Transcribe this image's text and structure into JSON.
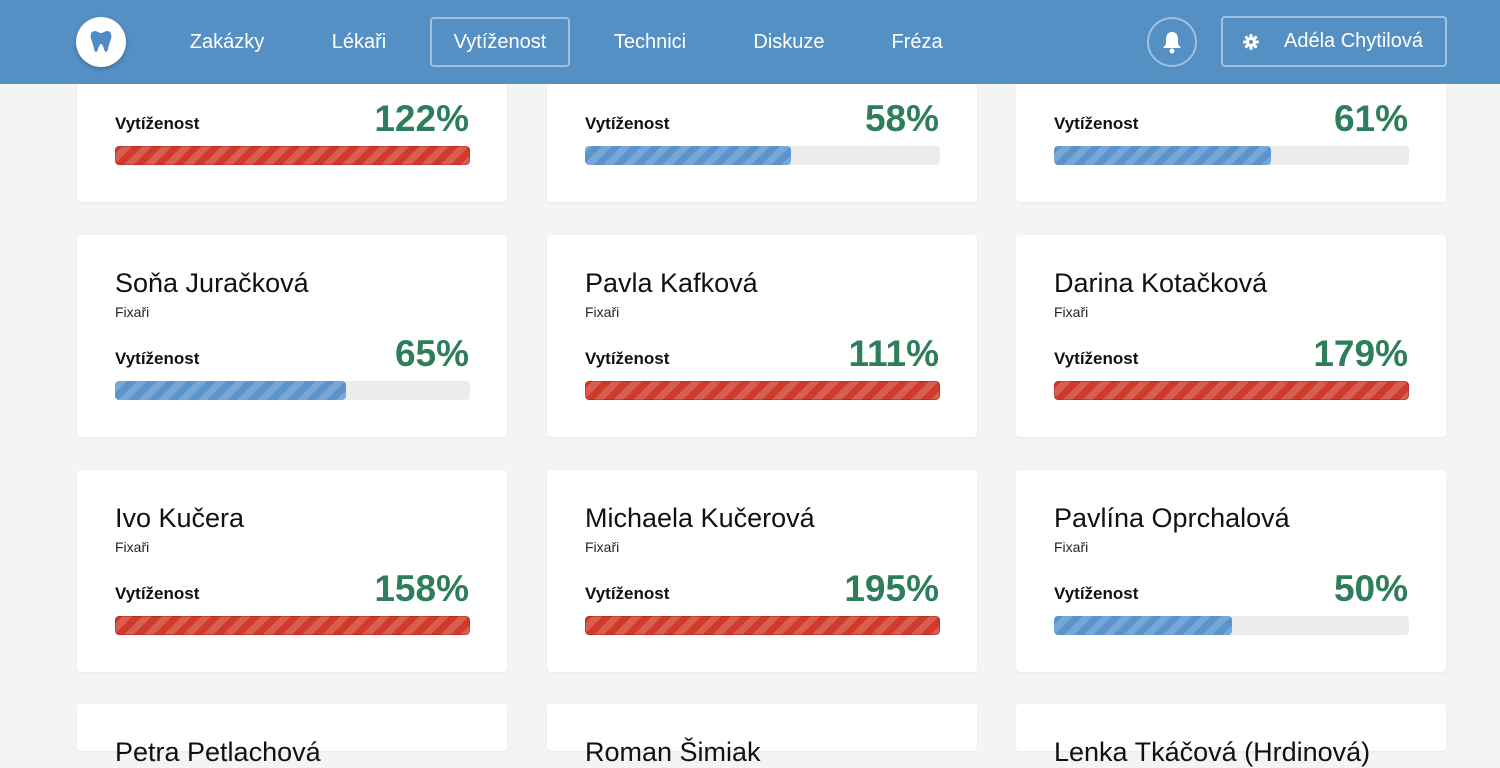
{
  "header": {
    "logo_icon": "tooth-icon",
    "nav": [
      {
        "label": "Zakázky",
        "active": false
      },
      {
        "label": "Lékaři",
        "active": false
      },
      {
        "label": "Vytíženost",
        "active": true
      },
      {
        "label": "Technici",
        "active": false
      },
      {
        "label": "Diskuze",
        "active": false
      },
      {
        "label": "Fréza",
        "active": false
      }
    ],
    "notifications_icon": "bell-icon",
    "user": {
      "icon": "gear-icon",
      "name": "Adéla Chytilová"
    }
  },
  "colors": {
    "header": "#5590c4",
    "percent_text": "#2e7d5b",
    "bar_normal": "#5b94cd",
    "bar_overload": "#cf3a2b",
    "page_bg": "#f3f4f4"
  },
  "cards": [
    {
      "name": "",
      "role": "",
      "label": "Vytíženost",
      "percent": "122%",
      "load": 1.22
    },
    {
      "name": "",
      "role": "",
      "label": "Vytíženost",
      "percent": "58%",
      "load": 0.58
    },
    {
      "name": "",
      "role": "",
      "label": "Vytíženost",
      "percent": "61%",
      "load": 0.61
    },
    {
      "name": "Soňa Juračková",
      "role": "Fixaři",
      "label": "Vytíženost",
      "percent": "65%",
      "load": 0.65
    },
    {
      "name": "Pavla Kafková",
      "role": "Fixaři",
      "label": "Vytíženost",
      "percent": "111%",
      "load": 1.11
    },
    {
      "name": "Darina Kotačková",
      "role": "Fixaři",
      "label": "Vytíženost",
      "percent": "179%",
      "load": 1.79
    },
    {
      "name": "Ivo Kučera",
      "role": "Fixaři",
      "label": "Vytíženost",
      "percent": "158%",
      "load": 1.58
    },
    {
      "name": "Michaela Kučerová",
      "role": "Fixaři",
      "label": "Vytíženost",
      "percent": "195%",
      "load": 1.95
    },
    {
      "name": "Pavlína Oprchalová",
      "role": "Fixaři",
      "label": "Vytíženost",
      "percent": "50%",
      "load": 0.5
    },
    {
      "name": "Petra Petlachová",
      "role": "",
      "label": "",
      "percent": "",
      "load": null
    },
    {
      "name": "Roman Šimiak",
      "role": "",
      "label": "",
      "percent": "",
      "load": null
    },
    {
      "name": "Lenka Tkáčová (Hrdinová)",
      "role": "",
      "label": "",
      "percent": "",
      "load": null
    }
  ]
}
